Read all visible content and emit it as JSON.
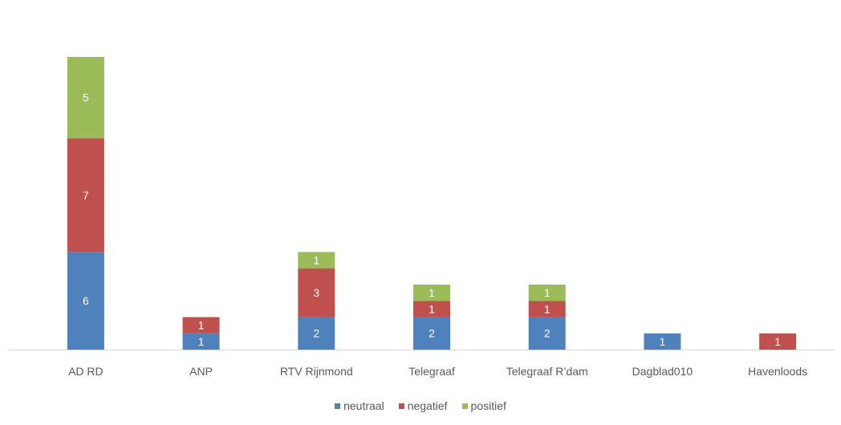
{
  "chart_data": {
    "type": "bar",
    "stacked": true,
    "categories": [
      "AD RD",
      "ANP",
      "RTV Rijnmond",
      "Telegraaf",
      "Telegraaf R’dam",
      "Dagblad010",
      "Havenloods"
    ],
    "series": [
      {
        "name": "neutraal",
        "values": [
          6,
          1,
          2,
          2,
          2,
          1,
          0
        ],
        "color": "#4f81bd"
      },
      {
        "name": "negatief",
        "values": [
          7,
          1,
          3,
          1,
          1,
          0,
          1
        ],
        "color": "#c0504d"
      },
      {
        "name": "positief",
        "values": [
          5,
          0,
          1,
          1,
          1,
          0,
          0
        ],
        "color": "#9bbb59"
      }
    ],
    "ylim": [
      0,
      18
    ],
    "legend_position": "bottom",
    "grid": false,
    "data_labels": true
  }
}
